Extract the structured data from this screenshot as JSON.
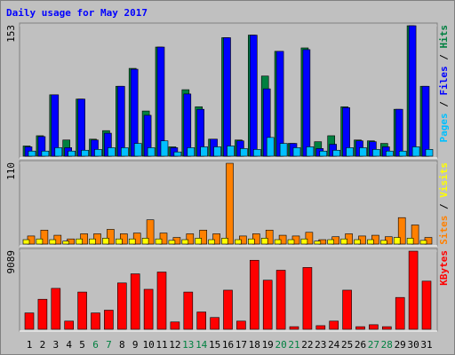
{
  "chart_data": [
    {
      "type": "bar",
      "title": "Daily usage for May 2017",
      "legend_separator": " / ",
      "ylim": [
        0,
        153
      ],
      "yticks": [
        153
      ],
      "series": [
        {
          "name": "Hits",
          "color": "#008040",
          "values": [
            12,
            24,
            72,
            19,
            67,
            20,
            30,
            82,
            103,
            53,
            128,
            11,
            78,
            58,
            20,
            139,
            19,
            142,
            94,
            123,
            15,
            127,
            17,
            24,
            58,
            19,
            18,
            15,
            55,
            153,
            82
          ]
        },
        {
          "name": "Files",
          "color": "#0000ff",
          "values": [
            11,
            23,
            72,
            10,
            67,
            19,
            27,
            82,
            102,
            48,
            128,
            10,
            73,
            55,
            20,
            139,
            18,
            142,
            79,
            123,
            15,
            125,
            9,
            14,
            57,
            18,
            17,
            11,
            55,
            153,
            82
          ]
        },
        {
          "name": "Pages",
          "color": "#00c0ff",
          "values": [
            6,
            6,
            10,
            6,
            7,
            8,
            10,
            10,
            15,
            10,
            18,
            5,
            10,
            11,
            11,
            12,
            9,
            8,
            22,
            15,
            10,
            11,
            6,
            7,
            10,
            10,
            8,
            6,
            6,
            11,
            8
          ]
        }
      ],
      "legend_order": [
        2,
        1,
        0
      ]
    },
    {
      "type": "bar",
      "legend_separator": " / ",
      "ylim": [
        0,
        110
      ],
      "yticks": [
        110
      ],
      "series": [
        {
          "name": "Sites",
          "color": "#ff8000",
          "values": [
            11,
            19,
            12,
            7,
            14,
            14,
            20,
            14,
            15,
            33,
            15,
            9,
            14,
            19,
            14,
            110,
            11,
            14,
            19,
            12,
            11,
            16,
            6,
            10,
            14,
            11,
            12,
            10,
            36,
            26,
            9
          ]
        },
        {
          "name": "Visits",
          "color": "#ffff00",
          "values": [
            6,
            7,
            6,
            4,
            7,
            7,
            8,
            7,
            7,
            8,
            7,
            5,
            6,
            8,
            6,
            8,
            6,
            7,
            8,
            6,
            6,
            7,
            4,
            6,
            7,
            6,
            6,
            5,
            9,
            8,
            5
          ]
        }
      ],
      "legend_order": [
        0,
        1
      ]
    },
    {
      "type": "bar",
      "ylim": [
        0,
        9089
      ],
      "yticks": [
        9089
      ],
      "categories": [
        "1",
        "2",
        "3",
        "4",
        "5",
        "6",
        "7",
        "8",
        "9",
        "10",
        "11",
        "12",
        "13",
        "14",
        "15",
        "16",
        "17",
        "18",
        "19",
        "20",
        "21",
        "22",
        "23",
        "24",
        "25",
        "26",
        "27",
        "28",
        "29",
        "30",
        "31"
      ],
      "category_colors": [
        "#000000",
        "#000000",
        "#000000",
        "#000000",
        "#000000",
        "#008040",
        "#008040",
        "#000000",
        "#000000",
        "#000000",
        "#000000",
        "#000000",
        "#008040",
        "#008040",
        "#000000",
        "#000000",
        "#000000",
        "#000000",
        "#000000",
        "#008040",
        "#008040",
        "#000000",
        "#000000",
        "#000000",
        "#000000",
        "#000000",
        "#008040",
        "#008040",
        "#000000",
        "#000000",
        "#000000"
      ],
      "series": [
        {
          "name": "KBytes",
          "color": "#ff0000",
          "values": [
            1900,
            3490,
            4760,
            950,
            4330,
            1900,
            2220,
            5390,
            6450,
            4650,
            6660,
            850,
            4330,
            2010,
            1370,
            4550,
            950,
            8030,
            5710,
            6870,
            300,
            7190,
            420,
            950,
            4550,
            300,
            530,
            300,
            3700,
            9089,
            5600
          ]
        }
      ],
      "legend_order": [
        0
      ]
    }
  ]
}
